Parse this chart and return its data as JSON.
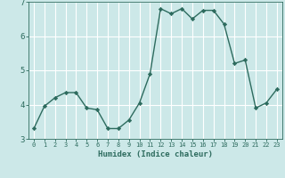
{
  "x": [
    0,
    1,
    2,
    3,
    4,
    5,
    6,
    7,
    8,
    9,
    10,
    11,
    12,
    13,
    14,
    15,
    16,
    17,
    18,
    19,
    20,
    21,
    22,
    23
  ],
  "y": [
    3.3,
    3.95,
    4.2,
    4.35,
    4.35,
    3.9,
    3.85,
    3.3,
    3.3,
    3.55,
    4.05,
    4.9,
    6.8,
    6.65,
    6.8,
    6.5,
    6.75,
    6.75,
    6.35,
    5.2,
    5.3,
    3.9,
    4.05,
    4.45
  ],
  "line_color": "#2d6b5e",
  "marker": "D",
  "marker_size": 2.2,
  "bg_color": "#cce8e8",
  "grid_color": "#ffffff",
  "xlabel": "Humidex (Indice chaleur)",
  "xlabel_color": "#2d6b5e",
  "tick_color": "#2d6b5e",
  "ylim": [
    3,
    7
  ],
  "xlim": [
    -0.5,
    23.5
  ],
  "yticks": [
    3,
    4,
    5,
    6,
    7
  ],
  "xticks": [
    0,
    1,
    2,
    3,
    4,
    5,
    6,
    7,
    8,
    9,
    10,
    11,
    12,
    13,
    14,
    15,
    16,
    17,
    18,
    19,
    20,
    21,
    22,
    23
  ],
  "line_width": 1.0
}
